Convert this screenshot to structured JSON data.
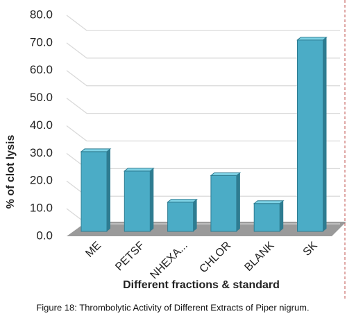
{
  "chart_data": {
    "type": "bar3d",
    "categories": [
      "ME",
      "PETSF",
      "NHEXA...",
      "CHLOR",
      "BLANK",
      "SK"
    ],
    "values": [
      30.0,
      22.7,
      11.0,
      21.0,
      10.5,
      72.0
    ],
    "color": "#4bacc6",
    "xlabel": "Different fractions & standard",
    "ylabel": "% of clot lysis",
    "ylim": [
      0,
      80
    ],
    "yticks": [
      {
        "value": 0,
        "label": "0.0"
      },
      {
        "value": 10,
        "label": "10.0"
      },
      {
        "value": 20,
        "label": "20.0"
      },
      {
        "value": 30,
        "label": "30.0"
      },
      {
        "value": 40,
        "label": "40.0"
      },
      {
        "value": 50,
        "label": "50.0"
      },
      {
        "value": 60,
        "label": "60.0"
      },
      {
        "value": 70,
        "label": "70.0"
      },
      {
        "value": 80,
        "label": "80.0"
      }
    ],
    "grid": true
  },
  "caption": "Figure 18: Thrombolytic Activity of Different Extracts of Piper nigrum."
}
